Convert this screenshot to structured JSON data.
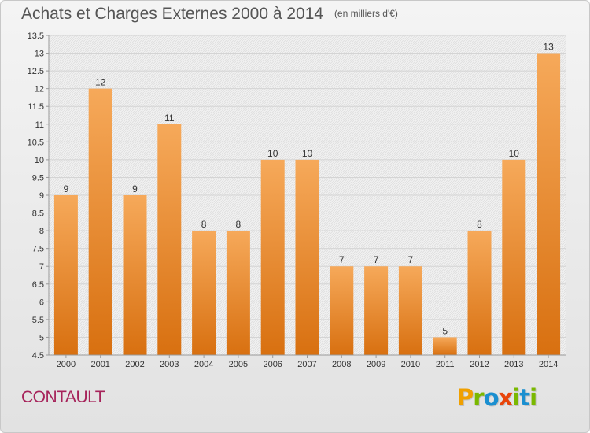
{
  "header": {
    "title": "Achats et Charges Externes 2000 à 2014",
    "unit": "(en milliers d'€)"
  },
  "footer": {
    "commune": "CONTAULT",
    "logo_text": "Proxiti",
    "logo_colors": [
      "#f0a000",
      "#7ab800",
      "#1a8fd0",
      "#e8440a",
      "#7ab800",
      "#1a8fd0",
      "#7ab800"
    ]
  },
  "colors": {
    "bar_top": "#f6a95a",
    "bar_bottom": "#d87010",
    "grid": "#d4d4d4",
    "axis_text": "#333333",
    "title": "#555555",
    "commune": "#a6235a"
  },
  "chart_data": {
    "type": "bar",
    "title": "Achats et Charges Externes 2000 à 2014",
    "subtitle": "(en milliers d'€)",
    "categories": [
      "2000",
      "2001",
      "2002",
      "2003",
      "2004",
      "2005",
      "2006",
      "2007",
      "2008",
      "2009",
      "2010",
      "2011",
      "2012",
      "2013",
      "2014"
    ],
    "values": [
      9,
      12,
      9,
      11,
      8,
      8,
      10,
      10,
      7,
      7,
      7,
      5,
      8,
      10,
      13
    ],
    "value_labels": [
      "9",
      "12",
      "9",
      "11",
      "8",
      "8",
      "10",
      "10",
      "7",
      "7",
      "7",
      "5",
      "8",
      "10",
      "13"
    ],
    "ylim": [
      4.5,
      13.5
    ],
    "yticks": [
      4.5,
      5,
      5.5,
      6,
      6.5,
      7,
      7.5,
      8,
      8.5,
      9,
      9.5,
      10,
      10.5,
      11,
      11.5,
      12,
      12.5,
      13,
      13.5
    ],
    "ytick_labels": [
      "4.5",
      "5",
      "5.5",
      "6",
      "6.5",
      "7",
      "7.5",
      "8",
      "8.5",
      "9",
      "9.5",
      "10",
      "10.5",
      "11",
      "11.5",
      "12",
      "12.5",
      "13",
      "13.5"
    ],
    "grid": true,
    "legend": false
  }
}
